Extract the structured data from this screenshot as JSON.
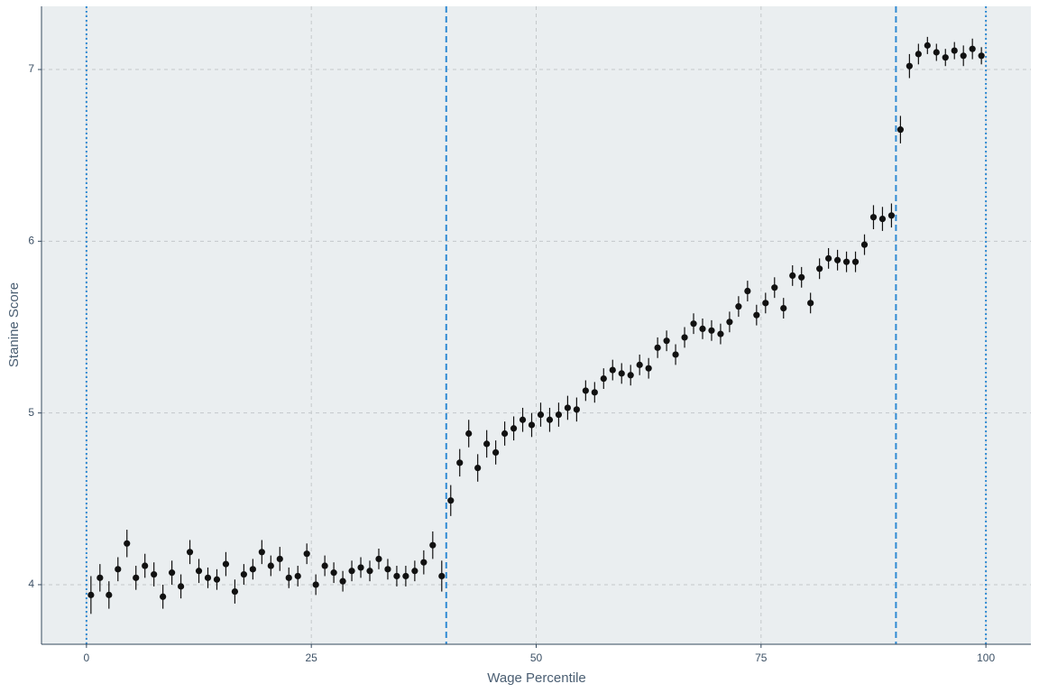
{
  "chart_data": {
    "type": "scatter",
    "x_label": "Wage Percentile",
    "y_label": "Stanine Score",
    "x": [
      0.5,
      1.5,
      2.5,
      3.5,
      4.5,
      5.5,
      6.5,
      7.5,
      8.5,
      9.5,
      10.5,
      11.5,
      12.5,
      13.5,
      14.5,
      15.5,
      16.5,
      17.5,
      18.5,
      19.5,
      20.5,
      21.5,
      22.5,
      23.5,
      24.5,
      25.5,
      26.5,
      27.5,
      28.5,
      29.5,
      30.5,
      31.5,
      32.5,
      33.5,
      34.5,
      35.5,
      36.5,
      37.5,
      38.5,
      39.5,
      40.5,
      41.5,
      42.5,
      43.5,
      44.5,
      45.5,
      46.5,
      47.5,
      48.5,
      49.5,
      50.5,
      51.5,
      52.5,
      53.5,
      54.5,
      55.5,
      56.5,
      57.5,
      58.5,
      59.5,
      60.5,
      61.5,
      62.5,
      63.5,
      64.5,
      65.5,
      66.5,
      67.5,
      68.5,
      69.5,
      70.5,
      71.5,
      72.5,
      73.5,
      74.5,
      75.5,
      76.5,
      77.5,
      78.5,
      79.5,
      80.5,
      81.5,
      82.5,
      83.5,
      84.5,
      85.5,
      86.5,
      87.5,
      88.5,
      89.5,
      90.5,
      91.5,
      92.5,
      93.5,
      94.5,
      95.5,
      96.5,
      97.5,
      98.5,
      99.5
    ],
    "values": [
      3.94,
      4.04,
      3.94,
      4.09,
      4.24,
      4.04,
      4.11,
      4.06,
      3.93,
      4.07,
      3.99,
      4.19,
      4.08,
      4.04,
      4.03,
      4.12,
      3.96,
      4.06,
      4.09,
      4.19,
      4.11,
      4.15,
      4.04,
      4.05,
      4.18,
      4.0,
      4.11,
      4.07,
      4.02,
      4.08,
      4.1,
      4.08,
      4.15,
      4.09,
      4.05,
      4.05,
      4.08,
      4.13,
      4.23,
      4.05,
      4.49,
      4.71,
      4.88,
      4.68,
      4.82,
      4.77,
      4.88,
      4.91,
      4.96,
      4.93,
      4.99,
      4.96,
      4.99,
      5.03,
      5.02,
      5.13,
      5.12,
      5.2,
      5.25,
      5.23,
      5.22,
      5.28,
      5.26,
      5.38,
      5.42,
      5.34,
      5.44,
      5.52,
      5.49,
      5.48,
      5.46,
      5.53,
      5.62,
      5.71,
      5.57,
      5.64,
      5.73,
      5.61,
      5.8,
      5.79,
      5.64,
      5.84,
      5.9,
      5.89,
      5.88,
      5.88,
      5.98,
      6.14,
      6.13,
      6.15,
      6.65,
      7.02,
      7.09,
      7.14,
      7.1,
      7.07,
      7.11,
      7.08,
      7.12,
      7.08
    ],
    "errors": [
      0.11,
      0.08,
      0.08,
      0.07,
      0.08,
      0.07,
      0.07,
      0.07,
      0.07,
      0.07,
      0.07,
      0.07,
      0.07,
      0.06,
      0.06,
      0.07,
      0.07,
      0.06,
      0.06,
      0.07,
      0.06,
      0.07,
      0.06,
      0.06,
      0.06,
      0.06,
      0.06,
      0.06,
      0.06,
      0.06,
      0.06,
      0.06,
      0.06,
      0.06,
      0.06,
      0.06,
      0.06,
      0.07,
      0.08,
      0.09,
      0.09,
      0.08,
      0.08,
      0.08,
      0.08,
      0.07,
      0.07,
      0.07,
      0.07,
      0.07,
      0.07,
      0.07,
      0.07,
      0.07,
      0.07,
      0.06,
      0.06,
      0.06,
      0.06,
      0.06,
      0.06,
      0.06,
      0.06,
      0.06,
      0.06,
      0.06,
      0.06,
      0.06,
      0.06,
      0.06,
      0.06,
      0.06,
      0.06,
      0.06,
      0.06,
      0.06,
      0.06,
      0.06,
      0.06,
      0.06,
      0.06,
      0.06,
      0.06,
      0.06,
      0.06,
      0.06,
      0.06,
      0.07,
      0.07,
      0.07,
      0.08,
      0.07,
      0.06,
      0.05,
      0.05,
      0.05,
      0.05,
      0.06,
      0.06,
      0.05
    ],
    "color": "#111111",
    "reference_lines": [
      {
        "x": 0,
        "style": "dotted"
      },
      {
        "x": 40,
        "style": "dashed"
      },
      {
        "x": 90,
        "style": "dashed"
      },
      {
        "x": 100,
        "style": "dotted"
      }
    ],
    "reference_color": "#2f8ad3",
    "xlim": [
      -5,
      105
    ],
    "ylim": [
      3.653,
      7.368
    ],
    "xticks": [
      0,
      25,
      50,
      75,
      100
    ],
    "yticks": [
      4,
      5,
      6,
      7
    ],
    "grid": true
  }
}
